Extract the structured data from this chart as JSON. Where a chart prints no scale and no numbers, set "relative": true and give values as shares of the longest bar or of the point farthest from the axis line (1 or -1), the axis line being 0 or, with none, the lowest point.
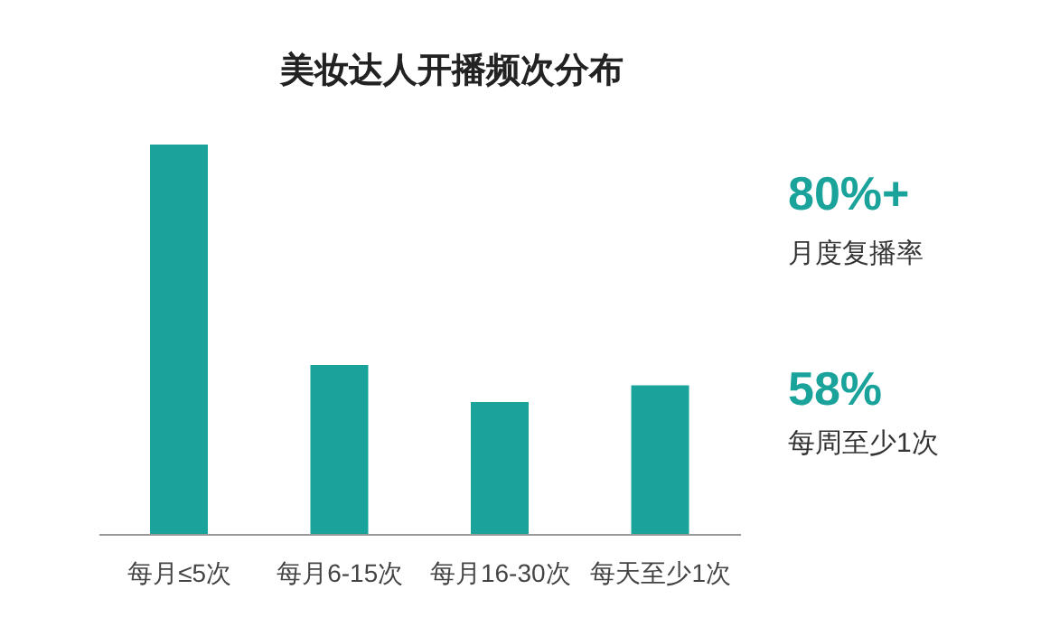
{
  "chart_data": {
    "type": "bar",
    "title": "美妆达人开播频次分布",
    "categories": [
      "每月≤5次",
      "每月6-15次",
      "每月16-30次",
      "每天至少1次"
    ],
    "values": [
      1,
      0.435,
      0.34,
      0.383
    ],
    "relative": true,
    "color": "#1aa39a",
    "annotations": [
      "80%+",
      "月度复播率",
      "58%",
      "每周至少1次"
    ]
  }
}
